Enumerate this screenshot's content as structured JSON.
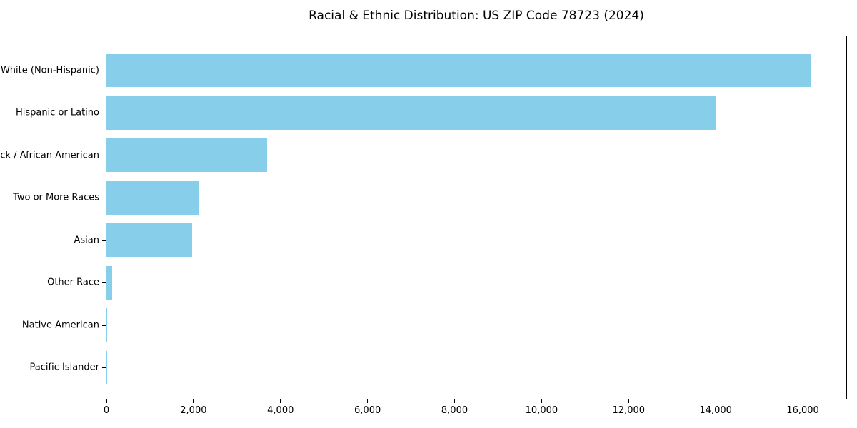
{
  "chart_data": {
    "type": "bar",
    "orientation": "horizontal",
    "title": "Racial & Ethnic Distribution: US ZIP Code 78723 (2024)",
    "categories": [
      "White (Non-Hispanic)",
      "Hispanic or Latino",
      "Black / African American",
      "Two or More Races",
      "Asian",
      "Other Race",
      "Native American",
      "Pacific Islander"
    ],
    "values": [
      16200,
      14000,
      3700,
      2130,
      1970,
      130,
      10,
      5
    ],
    "xlabel": "",
    "ylabel": "",
    "xlim": [
      0,
      17000
    ],
    "x_ticks": [
      0,
      2000,
      4000,
      6000,
      8000,
      10000,
      12000,
      14000,
      16000
    ],
    "x_tick_labels": [
      "0",
      "2,000",
      "4,000",
      "6,000",
      "8,000",
      "10,000",
      "12,000",
      "14,000",
      "16,000"
    ],
    "bar_color": "#87CEEB",
    "axis_color": "#000000",
    "background_color": "#ffffff",
    "grid": false,
    "legend_position": "none"
  }
}
